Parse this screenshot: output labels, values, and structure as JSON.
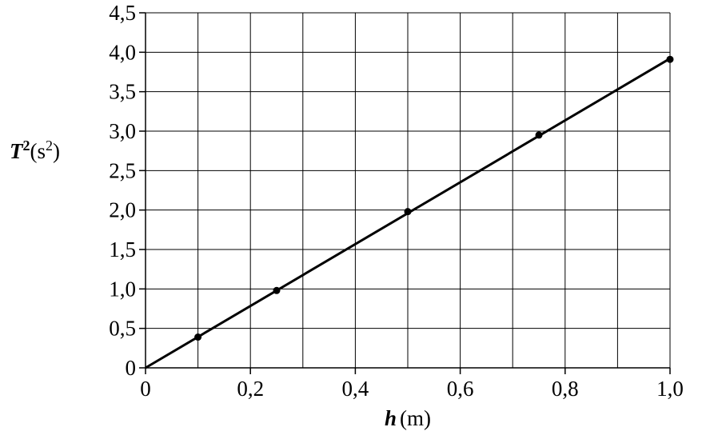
{
  "chart_data": {
    "type": "scatter",
    "ylabel_parts": [
      "T",
      "2",
      "(s",
      "2",
      ")"
    ],
    "xlabel_parts": [
      "h",
      "(m)"
    ],
    "series": [
      {
        "kind": "points",
        "color": "#000000",
        "x": [
          0.1,
          0.25,
          0.5,
          0.75,
          1.0
        ],
        "values": [
          0.39,
          0.98,
          1.98,
          2.95,
          3.91
        ]
      },
      {
        "kind": "line",
        "color": "#000000",
        "x": [
          0,
          1.0
        ],
        "values": [
          0,
          3.92
        ]
      }
    ],
    "xlim": [
      0,
      1.0
    ],
    "ylim": [
      0,
      4.5
    ],
    "xticks": [
      0,
      {
        "value": 0.2,
        "label": "0,2"
      },
      {
        "value": 0.4,
        "label": "0,4"
      },
      {
        "value": 0.6,
        "label": "0,6"
      },
      {
        "value": 0.8,
        "label": "0,8"
      },
      {
        "value": 1.0,
        "label": "1,0"
      }
    ],
    "xgrid": [
      0.1,
      0.2,
      0.3,
      0.4,
      0.5,
      0.6,
      0.7,
      0.8,
      0.9,
      1.0
    ],
    "yticks": [
      0,
      {
        "value": 0.5,
        "label": "0,5"
      },
      {
        "value": 1.0,
        "label": "1,0"
      },
      {
        "value": 1.5,
        "label": "1,5"
      },
      {
        "value": 2.0,
        "label": "2,0"
      },
      {
        "value": 2.5,
        "label": "2,5"
      },
      {
        "value": 3.0,
        "label": "3,0"
      },
      {
        "value": 3.5,
        "label": "3,5"
      },
      {
        "value": 4.0,
        "label": "4,0"
      },
      {
        "value": 4.5,
        "label": "4,5"
      }
    ],
    "grid": true
  }
}
